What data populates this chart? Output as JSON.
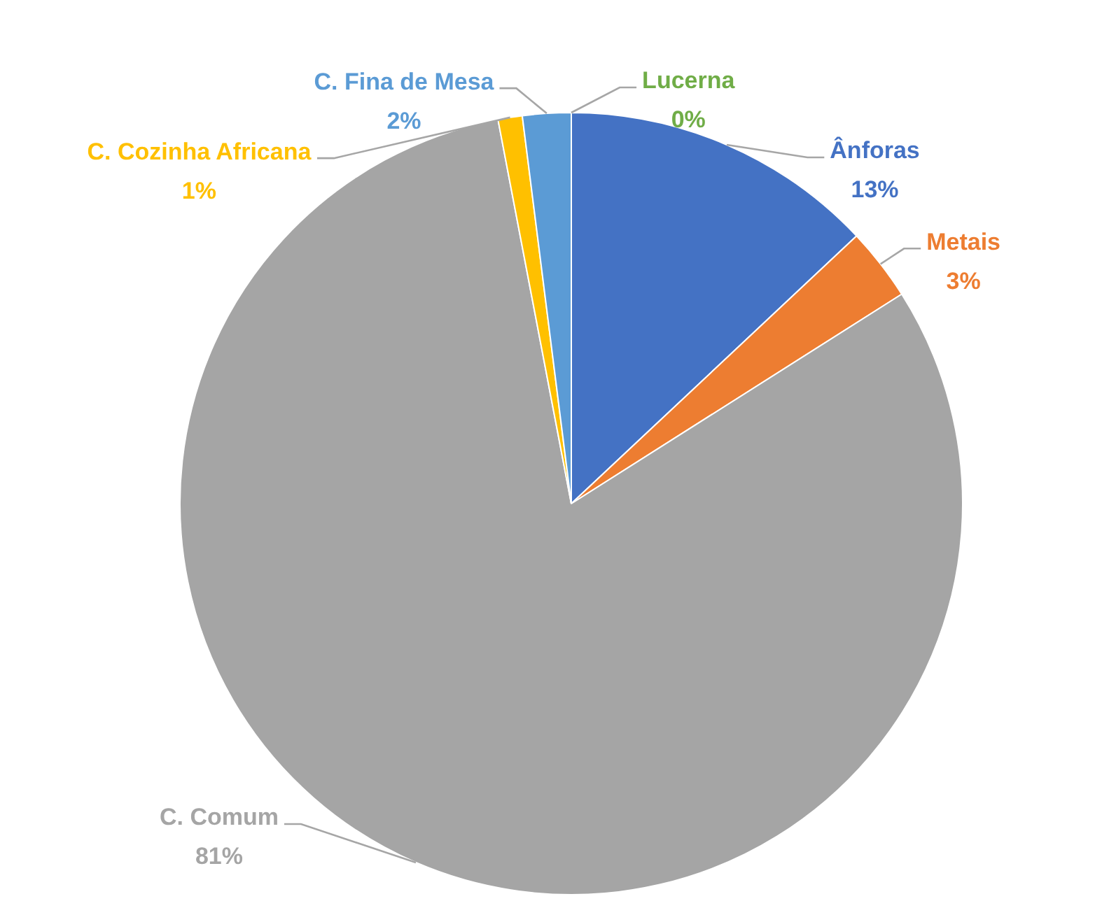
{
  "chart_data": {
    "type": "pie",
    "categories": [
      "Ânforas",
      "Metais",
      "C. Comum",
      "C. Cozinha Africana",
      "C. Fina de Mesa",
      "Lucerna"
    ],
    "values": [
      13,
      3,
      81,
      1,
      2,
      0
    ],
    "value_labels": [
      "13%",
      "3%",
      "81%",
      "1%",
      "2%",
      "0%"
    ],
    "colors": [
      "#4472c4",
      "#ed7d31",
      "#a5a5a5",
      "#ffc000",
      "#5b9bd5",
      "#70ad47"
    ],
    "legend": false
  }
}
